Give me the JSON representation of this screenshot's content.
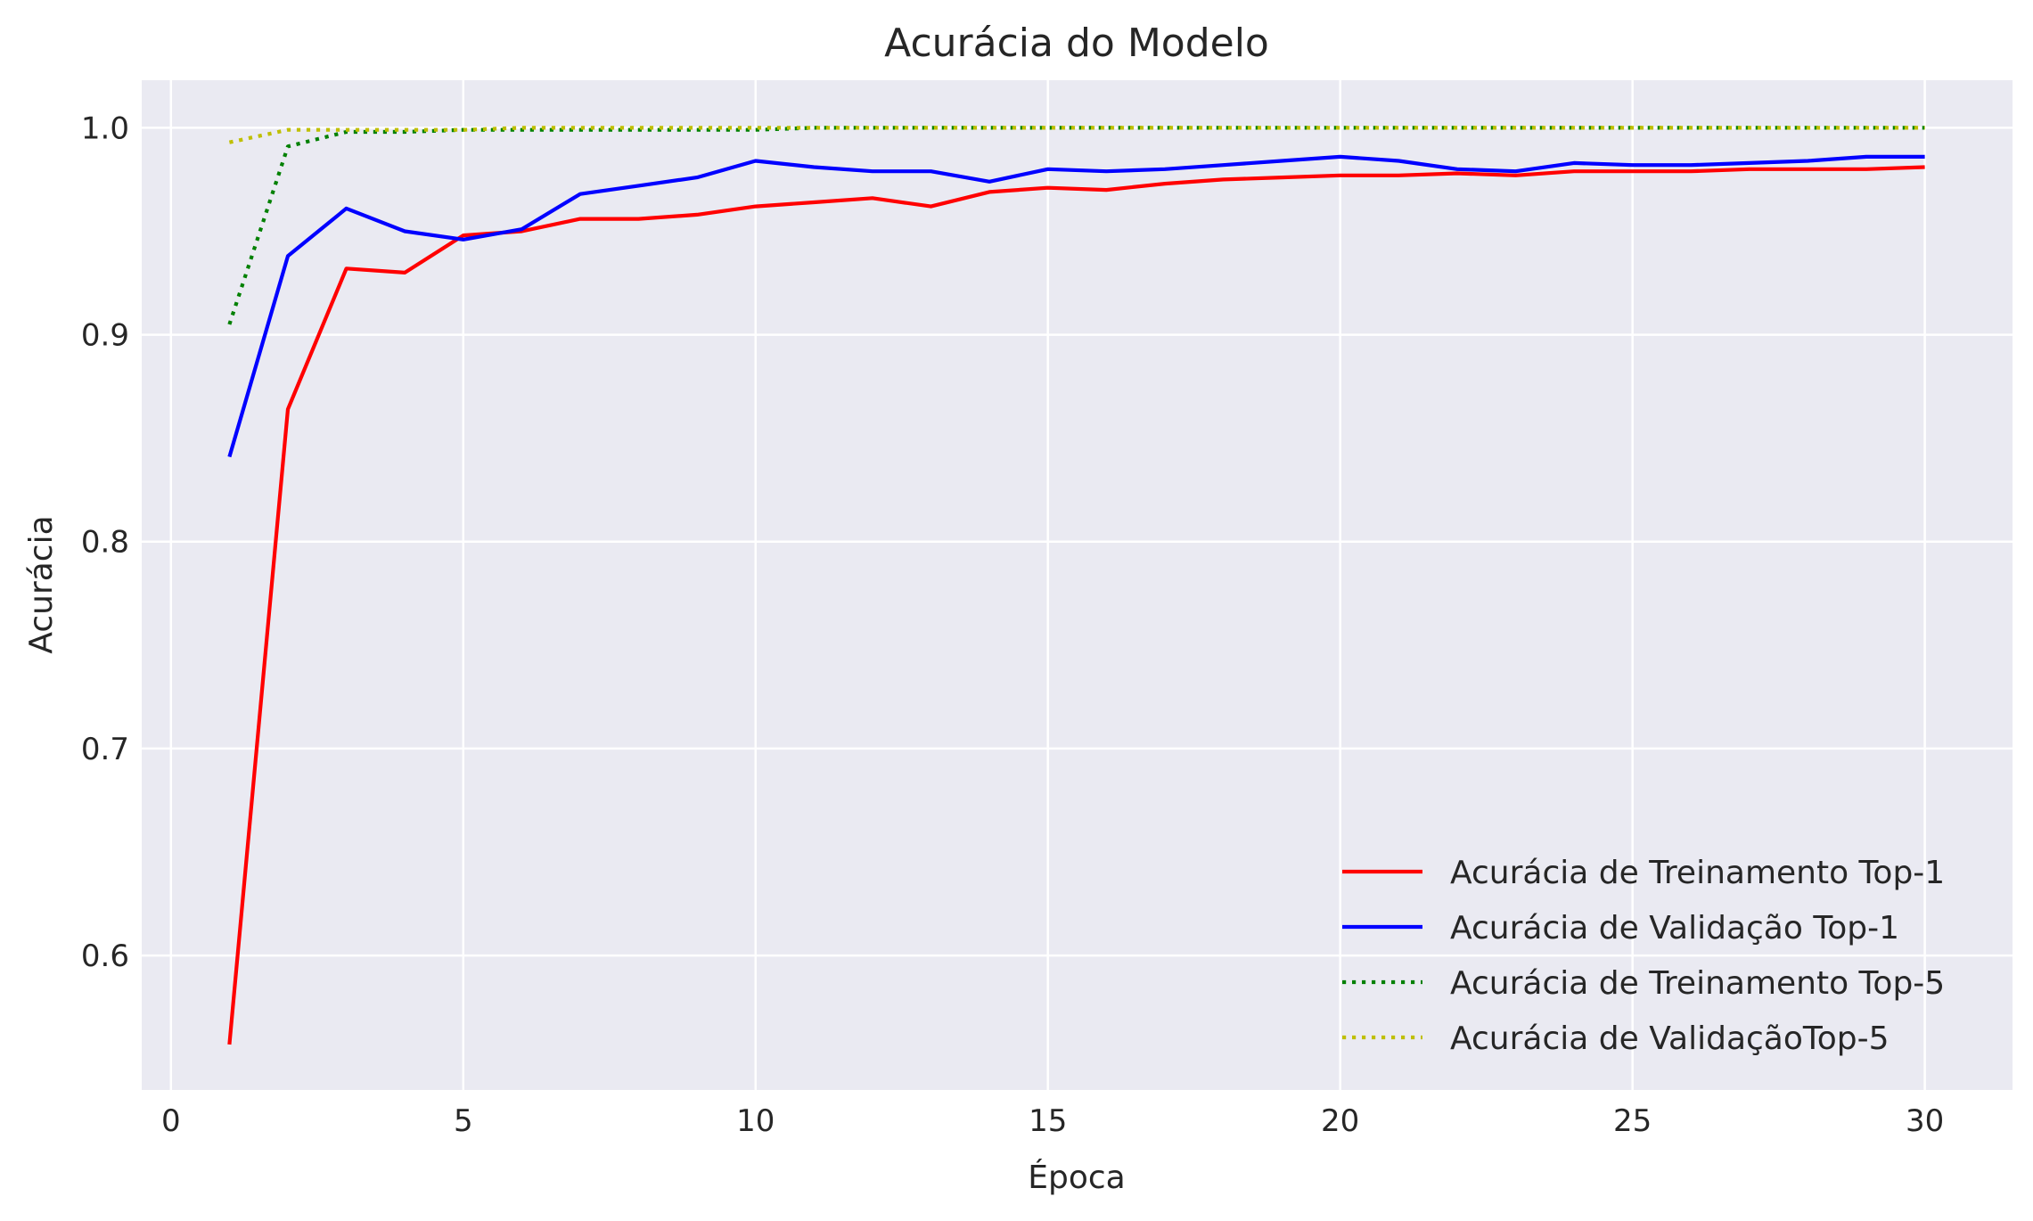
{
  "chart_data": {
    "type": "line",
    "title": "Acurácia do Modelo",
    "xlabel": "Época",
    "ylabel": "Acurácia",
    "xlim": [
      -0.5,
      31.5
    ],
    "ylim": [
      0.535,
      1.023
    ],
    "xticks": [
      0,
      5,
      10,
      15,
      20,
      25,
      30
    ],
    "yticks": [
      0.6,
      0.7,
      0.8,
      0.9,
      1.0
    ],
    "xtick_labels": [
      "0",
      "5",
      "10",
      "15",
      "20",
      "25",
      "30"
    ],
    "ytick_labels": [
      "0.6",
      "0.7",
      "0.8",
      "0.9",
      "1.0"
    ],
    "grid": true,
    "legend_position": "lower-right",
    "x": [
      1,
      2,
      3,
      4,
      5,
      6,
      7,
      8,
      9,
      10,
      11,
      12,
      13,
      14,
      15,
      16,
      17,
      18,
      19,
      20,
      21,
      22,
      23,
      24,
      25,
      26,
      27,
      28,
      29,
      30
    ],
    "series": [
      {
        "name": "Acurácia de Treinamento Top-1",
        "color": "#ff0000",
        "style": "solid",
        "values": [
          0.557,
          0.864,
          0.932,
          0.93,
          0.948,
          0.95,
          0.956,
          0.956,
          0.958,
          0.962,
          0.964,
          0.966,
          0.962,
          0.969,
          0.971,
          0.97,
          0.973,
          0.975,
          0.976,
          0.977,
          0.977,
          0.978,
          0.977,
          0.979,
          0.979,
          0.979,
          0.98,
          0.98,
          0.98,
          0.981
        ]
      },
      {
        "name": "Acurácia de Validação Top-1",
        "color": "#0000ff",
        "style": "solid",
        "values": [
          0.841,
          0.938,
          0.961,
          0.95,
          0.946,
          0.951,
          0.968,
          0.972,
          0.976,
          0.984,
          0.981,
          0.979,
          0.979,
          0.974,
          0.98,
          0.979,
          0.98,
          0.982,
          0.984,
          0.986,
          0.984,
          0.98,
          0.979,
          0.983,
          0.982,
          0.982,
          0.983,
          0.984,
          0.986,
          0.986
        ]
      },
      {
        "name": "Acurácia de Treinamento Top-5",
        "color": "#008000",
        "style": "dotted",
        "values": [
          0.905,
          0.991,
          0.998,
          0.998,
          0.999,
          0.999,
          0.999,
          0.999,
          0.999,
          0.999,
          1.0,
          1.0,
          1.0,
          1.0,
          1.0,
          1.0,
          1.0,
          1.0,
          1.0,
          1.0,
          1.0,
          1.0,
          1.0,
          1.0,
          1.0,
          1.0,
          1.0,
          1.0,
          1.0,
          1.0
        ]
      },
      {
        "name": "Acurácia de ValidaçãoTop-5",
        "color": "#bfbf00",
        "style": "dotted",
        "values": [
          0.993,
          0.999,
          0.999,
          0.999,
          0.999,
          1.0,
          1.0,
          1.0,
          1.0,
          1.0,
          1.0,
          1.0,
          1.0,
          1.0,
          1.0,
          1.0,
          1.0,
          1.0,
          1.0,
          1.0,
          1.0,
          1.0,
          1.0,
          1.0,
          1.0,
          1.0,
          1.0,
          1.0,
          1.0,
          1.0
        ]
      }
    ]
  },
  "colors": {
    "plot_background": "#eaeaf2",
    "grid": "#ffffff",
    "text": "#262626"
  }
}
